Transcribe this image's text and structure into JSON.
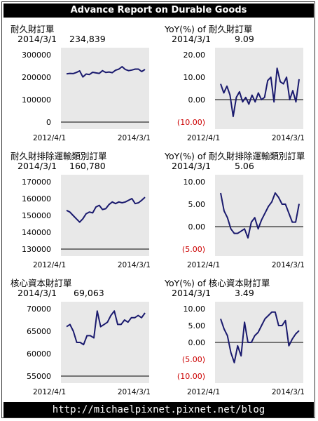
{
  "header": {
    "title": "Advance Report on Durable Goods"
  },
  "footer": {
    "url": "http://michaelpixnet.pixnet.net/blog"
  },
  "colors": {
    "line": "#1a1a6e",
    "plot_bg": "#e8e8e8",
    "negative": "#cc0000"
  },
  "panels": [
    {
      "title": "耐久財訂單",
      "date": "2014/3/1",
      "value": "234,839"
    },
    {
      "title": "YoY(%) of 耐久財訂單",
      "date": "2014/3/1",
      "value": "9.09"
    },
    {
      "title": "耐久財排除運輸類別訂單",
      "date": "2014/3/1",
      "value": "160,780"
    },
    {
      "title": "YoY(%) of 耐久財排除運輸類別訂單",
      "date": "2014/3/1",
      "value": "5.06"
    },
    {
      "title": "核心資本財訂單",
      "date": "2014/3/1",
      "value": "69,063"
    },
    {
      "title": "YoY(%) of 核心資本財訂單",
      "date": "2014/3/1",
      "value": "3.49"
    }
  ],
  "chart_data": [
    {
      "type": "line",
      "title": "耐久財訂單",
      "x_start": "2012/4/1",
      "x_end": "2014/3/1",
      "ylim": [
        0,
        300000
      ],
      "yticks": [
        0,
        100000,
        200000,
        300000
      ],
      "ytick_labels": [
        "0",
        "100000",
        "200000",
        "300000"
      ],
      "values": [
        215000,
        217000,
        216000,
        221000,
        228000,
        201000,
        214000,
        212000,
        222000,
        219000,
        217000,
        229000,
        221000,
        223000,
        220000,
        231000,
        236000,
        247000,
        234000,
        229000,
        232000,
        236000,
        236000,
        225000,
        234839
      ]
    },
    {
      "type": "line",
      "title": "YoY(%) of 耐久財訂單",
      "x_start": "2012/4/1",
      "x_end": "2014/3/1",
      "ylim": [
        -10,
        20
      ],
      "yticks": [
        -10,
        0,
        10,
        20
      ],
      "ytick_labels": [
        "(10.00)",
        "0.00",
        "10.00",
        "20.00"
      ],
      "values": [
        7,
        3,
        6,
        2,
        -7.5,
        1,
        3.5,
        -1,
        1,
        -2,
        2,
        -1,
        3,
        0,
        1,
        8.5,
        10,
        -1,
        14,
        8,
        7,
        10,
        0,
        4,
        -1,
        9.09
      ]
    },
    {
      "type": "line",
      "title": "耐久財排除運輸類別訂單",
      "x_start": "2012/4/1",
      "x_end": "2014/3/1",
      "ylim": [
        130000,
        170000
      ],
      "yticks": [
        130000,
        140000,
        150000,
        160000,
        170000
      ],
      "ytick_labels": [
        "130000",
        "140000",
        "150000",
        "160000",
        "170000"
      ],
      "values": [
        153000,
        152000,
        150000,
        148000,
        146000,
        148000,
        151000,
        152000,
        151500,
        155000,
        156000,
        153500,
        154000,
        156500,
        158000,
        157000,
        158000,
        157500,
        158000,
        159000,
        160000,
        157000,
        157500,
        159000,
        160780
      ]
    },
    {
      "type": "line",
      "title": "YoY(%) of 耐久財排除運輸類別訂單",
      "x_start": "2012/4/1",
      "x_end": "2014/3/1",
      "ylim": [
        -5,
        10
      ],
      "yticks": [
        -5,
        0,
        5,
        10
      ],
      "ytick_labels": [
        "(5.00)",
        "0.00",
        "5.00",
        "10.00"
      ],
      "values": [
        7.5,
        3.5,
        2,
        -0.5,
        -1.5,
        -1.5,
        -1,
        -0.5,
        -2.5,
        1,
        2,
        -0.5,
        1.5,
        3,
        4.5,
        5.5,
        7.5,
        6.5,
        5,
        5,
        3,
        1,
        1,
        5.06
      ]
    },
    {
      "type": "line",
      "title": "核心資本財訂單",
      "x_start": "2012/4/1",
      "x_end": "2014/3/1",
      "ylim": [
        55000,
        70000
      ],
      "yticks": [
        55000,
        60000,
        65000,
        70000
      ],
      "ytick_labels": [
        "55000",
        "60000",
        "65000",
        "70000"
      ],
      "values": [
        66000,
        66500,
        65000,
        62500,
        62500,
        62000,
        64000,
        64000,
        63500,
        69500,
        66000,
        66500,
        67000,
        68500,
        69500,
        66500,
        66500,
        67500,
        67000,
        68000,
        68000,
        68500,
        68000,
        69063
      ]
    },
    {
      "type": "line",
      "title": "YoY(%) of 核心資本財訂單",
      "x_start": "2012/4/1",
      "x_end": "2014/3/1",
      "ylim": [
        -10,
        10
      ],
      "yticks": [
        -10,
        -5,
        0,
        5,
        10
      ],
      "ytick_labels": [
        "(10.00)",
        "(5.00)",
        "0.00",
        "5.00",
        "10.00"
      ],
      "values": [
        7,
        4,
        2,
        -3,
        -6,
        -1,
        -4,
        6,
        0,
        0,
        2,
        3,
        5,
        7,
        8,
        9,
        9,
        5,
        5,
        6.5,
        -1,
        1,
        2.5,
        3.49
      ]
    }
  ]
}
